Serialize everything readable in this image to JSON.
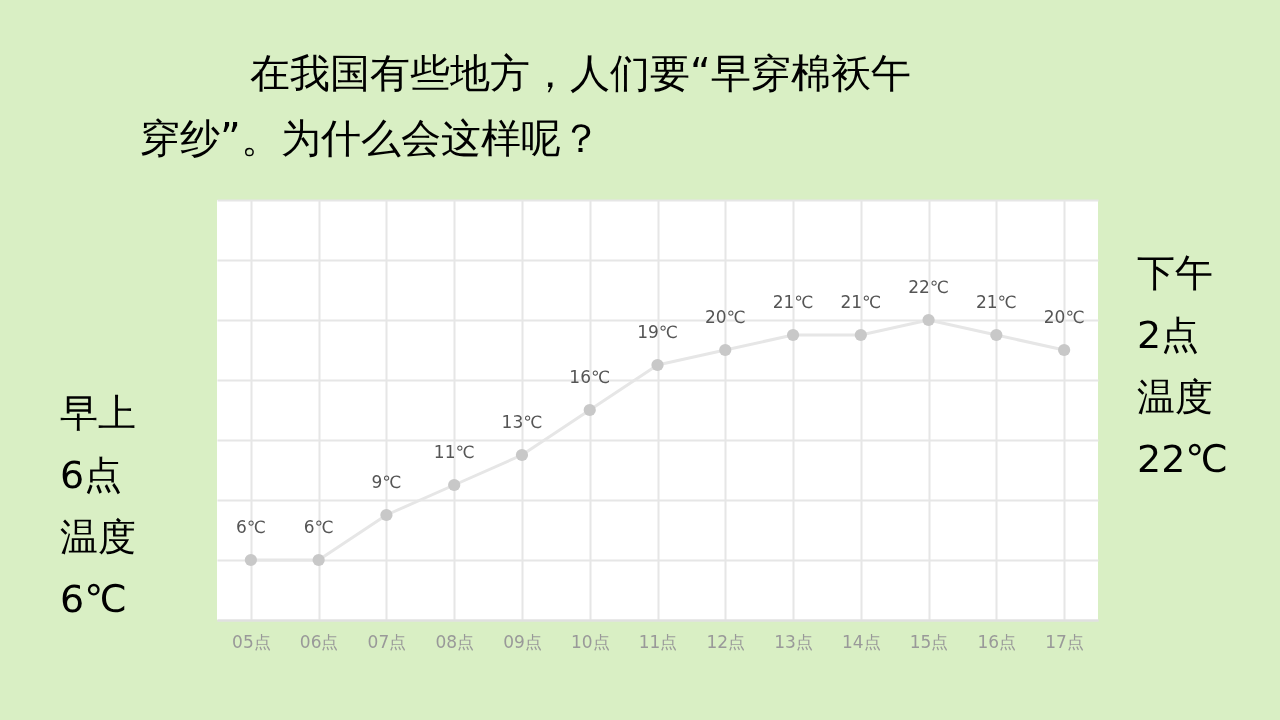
{
  "chart_data": {
    "type": "line",
    "title": "在我国有些地方，人们要“早穿棉袄午穿纱”。为什么会这样呢？",
    "categories": [
      "05点",
      "06点",
      "07点",
      "08点",
      "09点",
      "10点",
      "11点",
      "12点",
      "13点",
      "14点",
      "15点",
      "16点",
      "17点"
    ],
    "series": [
      {
        "color": "#c8c8c8",
        "values": [
          6,
          6,
          9,
          11,
          13,
          16,
          19,
          20,
          21,
          21,
          22,
          21,
          20
        ],
        "value_labels": [
          "6℃",
          "6℃",
          "9℃",
          "11℃",
          "13℃",
          "16℃",
          "19℃",
          "20℃",
          "21℃",
          "21℃",
          "22℃",
          "21℃",
          "20℃"
        ]
      }
    ],
    "ylim": [
      2,
      30
    ],
    "yticks": [
      {
        "value": 2,
        "label": null
      },
      {
        "value": 6,
        "label": null
      },
      {
        "value": 10,
        "label": null
      },
      {
        "value": 14,
        "label": null
      },
      {
        "value": 18,
        "label": null
      },
      {
        "value": 22,
        "label": null
      },
      {
        "value": 26,
        "label": null
      },
      {
        "value": 30,
        "label": null
      }
    ],
    "tick_labels": "x",
    "grid": true,
    "marker": "circle",
    "line_style": "solid",
    "annotations": [
      "早上",
      "6点",
      "温度",
      "6℃",
      "下午",
      "2点",
      "温度",
      "22℃"
    ]
  }
}
